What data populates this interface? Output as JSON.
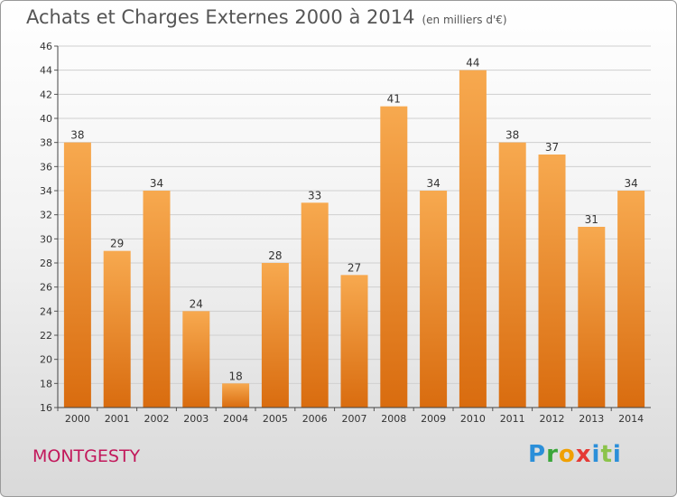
{
  "title": "Achats et Charges Externes 2000 à 2014",
  "unit_note": "(en milliers d'€)",
  "commune": "MONTGESTY",
  "brand": "Proxiti",
  "colors": {
    "bar_light": "#f7a94f",
    "bar_dark": "#d96c0f"
  },
  "chart_data": {
    "type": "bar",
    "categories": [
      "2000",
      "2001",
      "2002",
      "2003",
      "2004",
      "2005",
      "2006",
      "2007",
      "2008",
      "2009",
      "2010",
      "2011",
      "2012",
      "2013",
      "2014"
    ],
    "values": [
      38,
      29,
      34,
      24,
      18,
      28,
      33,
      27,
      41,
      34,
      44,
      38,
      37,
      31,
      34
    ],
    "ylim": [
      16,
      46
    ],
    "yticks": [
      16,
      18,
      20,
      22,
      24,
      26,
      28,
      30,
      32,
      34,
      36,
      38,
      40,
      42,
      44,
      46
    ],
    "grid": true,
    "data_labels": true
  }
}
